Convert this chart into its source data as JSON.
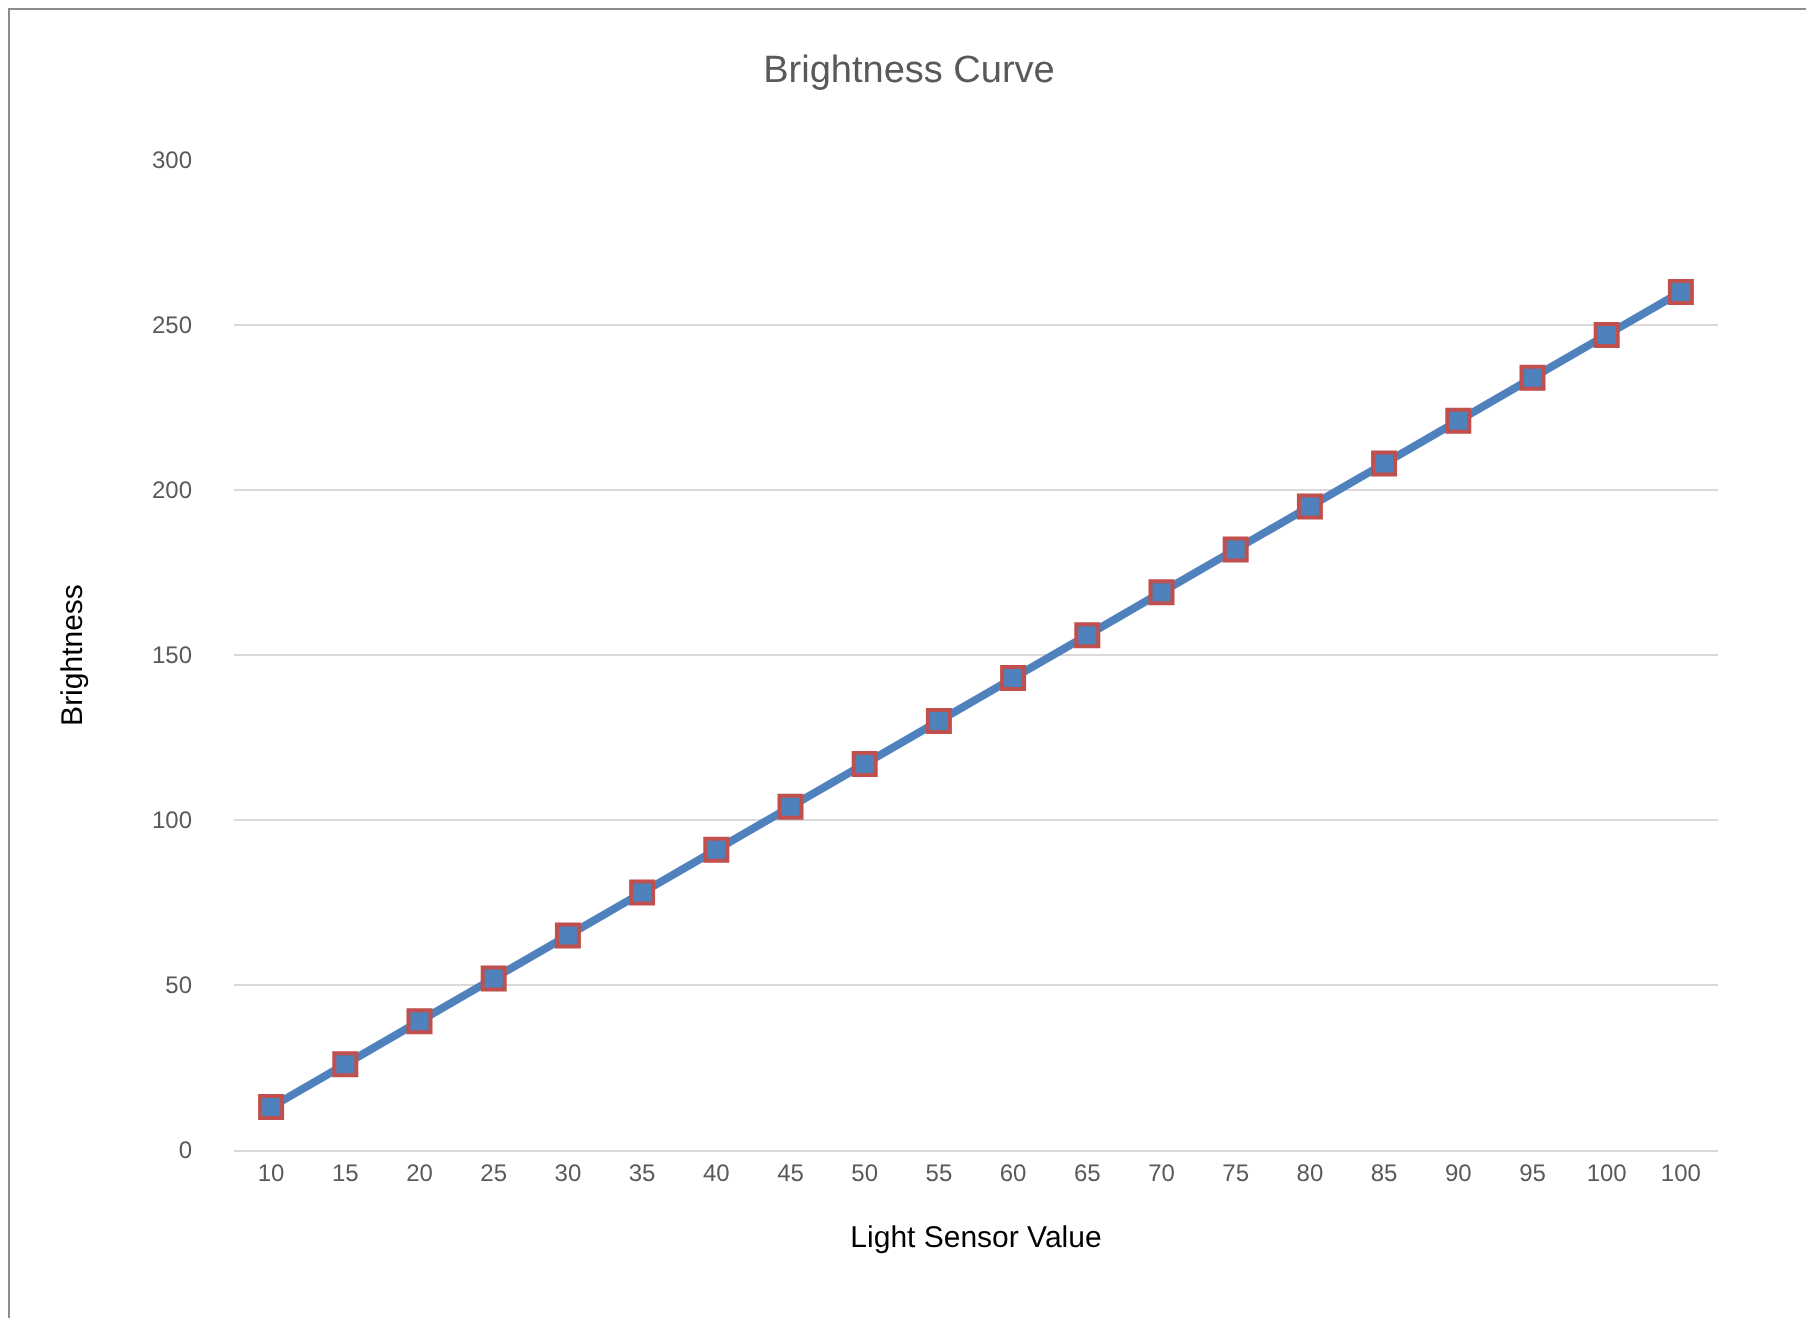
{
  "chart_data": {
    "type": "line",
    "title": "Brightness Curve",
    "xlabel": "Light Sensor Value",
    "ylabel": "Brightness",
    "categories": [
      "10",
      "15",
      "20",
      "25",
      "30",
      "35",
      "40",
      "45",
      "50",
      "55",
      "60",
      "65",
      "70",
      "75",
      "80",
      "85",
      "90",
      "95",
      "100",
      "100"
    ],
    "series": [
      {
        "color": "#4f81bd",
        "values": [
          13,
          26,
          39,
          52,
          65,
          78,
          91,
          104,
          117,
          130,
          143,
          156,
          169,
          182,
          195,
          208,
          221,
          234,
          247,
          260
        ]
      }
    ],
    "ylim": [
      0,
      300
    ],
    "yticks": [
      0,
      50,
      100,
      150,
      200,
      250,
      300
    ],
    "grid": "y",
    "marker": "square",
    "line_style": "solid"
  }
}
